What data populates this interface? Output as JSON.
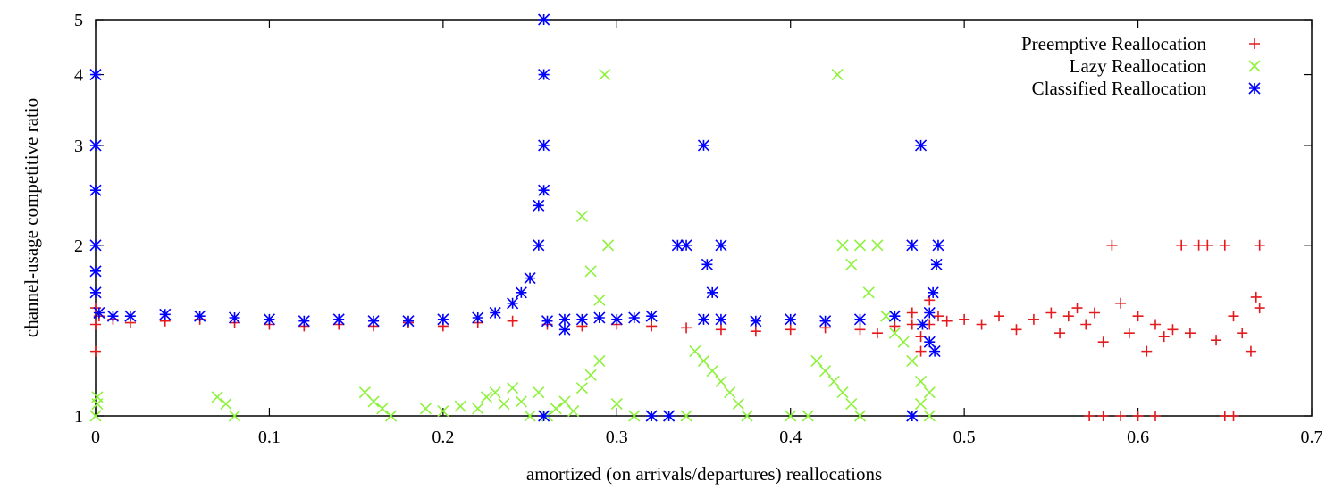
{
  "chart_data": {
    "type": "scatter",
    "title": "",
    "xlabel": "amortized (on arrivals/departures) reallocations",
    "ylabel": "channel-usage competitive ratio",
    "xlim": [
      0,
      0.7
    ],
    "ylim": [
      1,
      5
    ],
    "yscale": "log",
    "grid": false,
    "legend_position": "top-right",
    "x_ticks": [
      "0",
      "0.1",
      "0.2",
      "0.3",
      "0.4",
      "0.5",
      "0.6",
      "0.7"
    ],
    "y_ticks": [
      "1",
      "2",
      "3",
      "4",
      "5"
    ],
    "series": [
      {
        "name": "Preemptive Reallocation",
        "marker": "plus",
        "color": "#e41a1c",
        "points": [
          [
            0.0,
            1.55
          ],
          [
            0.0,
            1.45
          ],
          [
            0.0,
            1.3
          ],
          [
            0.002,
            1.5
          ],
          [
            0.01,
            1.48
          ],
          [
            0.02,
            1.46
          ],
          [
            0.04,
            1.47
          ],
          [
            0.06,
            1.48
          ],
          [
            0.08,
            1.46
          ],
          [
            0.1,
            1.45
          ],
          [
            0.12,
            1.44
          ],
          [
            0.14,
            1.45
          ],
          [
            0.16,
            1.44
          ],
          [
            0.18,
            1.46
          ],
          [
            0.2,
            1.44
          ],
          [
            0.22,
            1.46
          ],
          [
            0.24,
            1.47
          ],
          [
            0.26,
            1.45
          ],
          [
            0.28,
            1.44
          ],
          [
            0.3,
            1.45
          ],
          [
            0.32,
            1.44
          ],
          [
            0.34,
            1.43
          ],
          [
            0.36,
            1.42
          ],
          [
            0.38,
            1.41
          ],
          [
            0.4,
            1.42
          ],
          [
            0.42,
            1.43
          ],
          [
            0.44,
            1.42
          ],
          [
            0.45,
            1.4
          ],
          [
            0.46,
            1.44
          ],
          [
            0.47,
            1.45
          ],
          [
            0.475,
            1.3
          ],
          [
            0.48,
            1.45
          ],
          [
            0.485,
            1.5
          ],
          [
            0.49,
            1.47
          ],
          [
            0.5,
            1.48
          ],
          [
            0.51,
            1.45
          ],
          [
            0.52,
            1.5
          ],
          [
            0.53,
            1.42
          ],
          [
            0.54,
            1.48
          ],
          [
            0.55,
            1.52
          ],
          [
            0.555,
            1.4
          ],
          [
            0.56,
            1.5
          ],
          [
            0.565,
            1.55
          ],
          [
            0.57,
            1.45
          ],
          [
            0.575,
            1.52
          ],
          [
            0.58,
            1.35
          ],
          [
            0.585,
            2.0
          ],
          [
            0.59,
            1.58
          ],
          [
            0.595,
            1.4
          ],
          [
            0.6,
            1.5
          ],
          [
            0.605,
            1.3
          ],
          [
            0.61,
            1.45
          ],
          [
            0.615,
            1.38
          ],
          [
            0.62,
            1.42
          ],
          [
            0.625,
            2.0
          ],
          [
            0.63,
            1.4
          ],
          [
            0.635,
            2.0
          ],
          [
            0.64,
            2.0
          ],
          [
            0.645,
            1.36
          ],
          [
            0.65,
            2.0
          ],
          [
            0.655,
            1.5
          ],
          [
            0.66,
            1.4
          ],
          [
            0.665,
            1.3
          ],
          [
            0.668,
            1.62
          ],
          [
            0.67,
            1.55
          ],
          [
            0.67,
            2.0
          ],
          [
            0.572,
            1.0
          ],
          [
            0.58,
            1.0
          ],
          [
            0.59,
            1.0
          ],
          [
            0.6,
            1.0
          ],
          [
            0.61,
            1.0
          ],
          [
            0.65,
            1.0
          ],
          [
            0.655,
            1.0
          ],
          [
            0.48,
            1.6
          ],
          [
            0.475,
            1.38
          ],
          [
            0.47,
            1.52
          ]
        ]
      },
      {
        "name": "Lazy Reallocation",
        "marker": "cross",
        "color": "#8ef23c",
        "points": [
          [
            0.0,
            1.0
          ],
          [
            0.001,
            1.05
          ],
          [
            0.001,
            1.08
          ],
          [
            0.07,
            1.08
          ],
          [
            0.075,
            1.05
          ],
          [
            0.08,
            1.0
          ],
          [
            0.155,
            1.1
          ],
          [
            0.16,
            1.06
          ],
          [
            0.165,
            1.03
          ],
          [
            0.17,
            1.0
          ],
          [
            0.19,
            1.03
          ],
          [
            0.2,
            1.02
          ],
          [
            0.21,
            1.04
          ],
          [
            0.22,
            1.03
          ],
          [
            0.225,
            1.08
          ],
          [
            0.23,
            1.1
          ],
          [
            0.235,
            1.05
          ],
          [
            0.24,
            1.12
          ],
          [
            0.245,
            1.06
          ],
          [
            0.25,
            1.0
          ],
          [
            0.255,
            1.1
          ],
          [
            0.26,
            1.0
          ],
          [
            0.265,
            1.03
          ],
          [
            0.27,
            1.06
          ],
          [
            0.275,
            1.02
          ],
          [
            0.28,
            1.12
          ],
          [
            0.285,
            1.18
          ],
          [
            0.29,
            1.25
          ],
          [
            0.29,
            1.6
          ],
          [
            0.295,
            2.0
          ],
          [
            0.28,
            2.25
          ],
          [
            0.285,
            1.8
          ],
          [
            0.293,
            4.0
          ],
          [
            0.3,
            1.05
          ],
          [
            0.31,
            1.0
          ],
          [
            0.32,
            1.0
          ],
          [
            0.33,
            1.0
          ],
          [
            0.34,
            1.0
          ],
          [
            0.345,
            1.3
          ],
          [
            0.35,
            1.25
          ],
          [
            0.355,
            1.2
          ],
          [
            0.36,
            1.15
          ],
          [
            0.365,
            1.1
          ],
          [
            0.37,
            1.05
          ],
          [
            0.375,
            1.0
          ],
          [
            0.4,
            1.0
          ],
          [
            0.41,
            1.0
          ],
          [
            0.415,
            1.25
          ],
          [
            0.42,
            1.2
          ],
          [
            0.425,
            1.15
          ],
          [
            0.43,
            1.1
          ],
          [
            0.435,
            1.05
          ],
          [
            0.44,
            1.0
          ],
          [
            0.427,
            4.0
          ],
          [
            0.43,
            2.0
          ],
          [
            0.44,
            2.0
          ],
          [
            0.45,
            2.0
          ],
          [
            0.435,
            1.85
          ],
          [
            0.445,
            1.65
          ],
          [
            0.455,
            1.5
          ],
          [
            0.46,
            1.4
          ],
          [
            0.465,
            1.35
          ],
          [
            0.47,
            1.25
          ],
          [
            0.475,
            1.15
          ],
          [
            0.48,
            1.1
          ],
          [
            0.47,
            1.0
          ],
          [
            0.475,
            1.05
          ],
          [
            0.48,
            1.0
          ]
        ]
      },
      {
        "name": "Classified Reallocation",
        "marker": "star",
        "color": "#0000ff",
        "points": [
          [
            0.0,
            4.0
          ],
          [
            0.0,
            3.0
          ],
          [
            0.0,
            2.5
          ],
          [
            0.0,
            2.0
          ],
          [
            0.0,
            1.8
          ],
          [
            0.0,
            1.65
          ],
          [
            0.002,
            1.52
          ],
          [
            0.01,
            1.5
          ],
          [
            0.02,
            1.5
          ],
          [
            0.04,
            1.51
          ],
          [
            0.06,
            1.5
          ],
          [
            0.08,
            1.49
          ],
          [
            0.1,
            1.48
          ],
          [
            0.12,
            1.47
          ],
          [
            0.14,
            1.48
          ],
          [
            0.16,
            1.47
          ],
          [
            0.18,
            1.47
          ],
          [
            0.2,
            1.48
          ],
          [
            0.22,
            1.49
          ],
          [
            0.23,
            1.52
          ],
          [
            0.24,
            1.58
          ],
          [
            0.245,
            1.65
          ],
          [
            0.25,
            1.75
          ],
          [
            0.255,
            2.0
          ],
          [
            0.255,
            2.35
          ],
          [
            0.258,
            2.5
          ],
          [
            0.258,
            3.0
          ],
          [
            0.258,
            4.0
          ],
          [
            0.258,
            5.0
          ],
          [
            0.26,
            1.47
          ],
          [
            0.27,
            1.48
          ],
          [
            0.28,
            1.48
          ],
          [
            0.29,
            1.49
          ],
          [
            0.3,
            1.48
          ],
          [
            0.31,
            1.49
          ],
          [
            0.32,
            1.0
          ],
          [
            0.33,
            1.0
          ],
          [
            0.335,
            2.0
          ],
          [
            0.34,
            2.0
          ],
          [
            0.35,
            1.48
          ],
          [
            0.35,
            3.0
          ],
          [
            0.352,
            1.85
          ],
          [
            0.355,
            1.65
          ],
          [
            0.36,
            2.0
          ],
          [
            0.36,
            1.48
          ],
          [
            0.38,
            1.47
          ],
          [
            0.4,
            1.48
          ],
          [
            0.42,
            1.47
          ],
          [
            0.44,
            1.48
          ],
          [
            0.46,
            1.5
          ],
          [
            0.47,
            1.0
          ],
          [
            0.475,
            3.0
          ],
          [
            0.47,
            2.0
          ],
          [
            0.48,
            1.52
          ],
          [
            0.482,
            1.65
          ],
          [
            0.484,
            1.85
          ],
          [
            0.483,
            1.3
          ],
          [
            0.48,
            1.35
          ],
          [
            0.476,
            1.45
          ],
          [
            0.485,
            2.0
          ],
          [
            0.258,
            1.0
          ],
          [
            0.27,
            1.42
          ],
          [
            0.32,
            1.5
          ]
        ]
      }
    ]
  }
}
